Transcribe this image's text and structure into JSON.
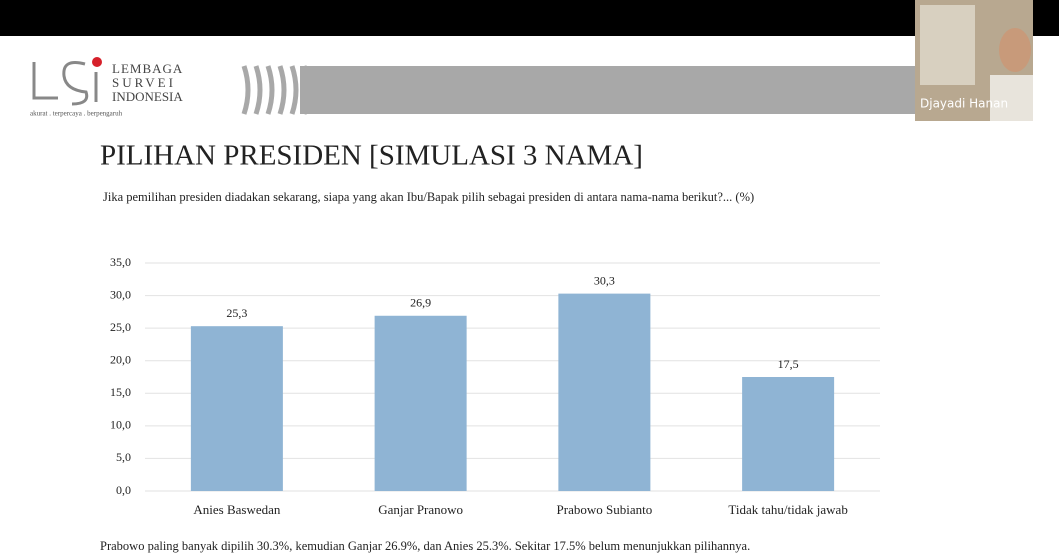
{
  "header": {
    "org_lines": [
      "LEMBAGA",
      "SURVEI",
      "INDONESIA"
    ],
    "tagline": "akurat . terpercaya . berpengaruh"
  },
  "video": {
    "name": "Djayadi Hanan"
  },
  "chart_data": {
    "type": "bar",
    "title": "PILIHAN PRESIDEN [SIMULASI 3 NAMA]",
    "subtitle": "Jika pemilihan presiden diadakan sekarang, siapa yang akan Ibu/Bapak pilih sebagai presiden di antara nama-nama berikut?... (%)",
    "categories": [
      "Anies Baswedan",
      "Ganjar Pranowo",
      "Prabowo Subianto",
      "Tidak tahu/tidak jawab"
    ],
    "values": [
      25.3,
      26.9,
      30.3,
      17.5
    ],
    "value_labels": [
      "25,3",
      "26,9",
      "30,3",
      "17,5"
    ],
    "color": "#8fb4d4",
    "ylim": [
      0,
      35
    ],
    "yticks": [
      {
        "value": 0,
        "label": "0,0"
      },
      {
        "value": 5,
        "label": "5,0"
      },
      {
        "value": 10,
        "label": "10,0"
      },
      {
        "value": 15,
        "label": "15,0"
      },
      {
        "value": 20,
        "label": "20,0"
      },
      {
        "value": 25,
        "label": "25,0"
      },
      {
        "value": 30,
        "label": "30,0"
      },
      {
        "value": 35,
        "label": "35,0"
      }
    ],
    "grid": true,
    "caption": "Prabowo paling banyak dipilih 30.3%, kemudian Ganjar 26.9%, dan Anies 25.3%. Sekitar 17.5% belum menunjukkan pilihannya."
  }
}
